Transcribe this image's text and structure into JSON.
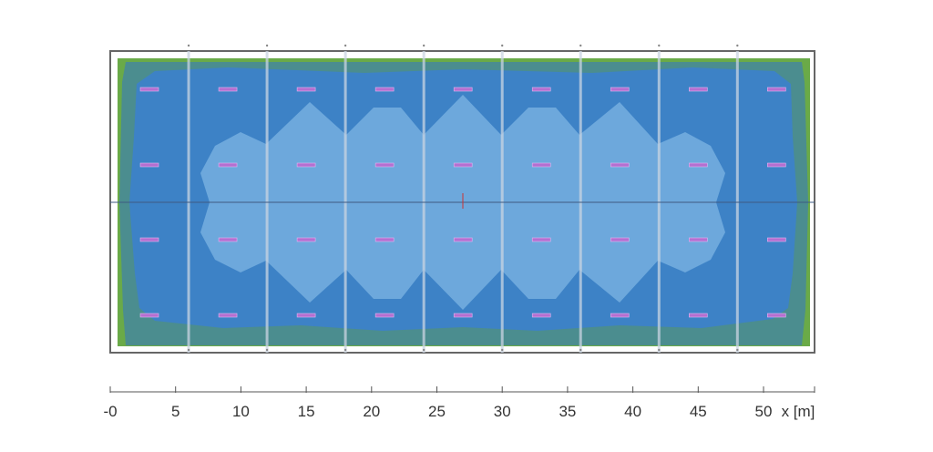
{
  "scale": {
    "ticks": [
      {
        "value": 0,
        "label": "-0"
      },
      {
        "value": 5,
        "label": "5"
      },
      {
        "value": 10,
        "label": "10"
      },
      {
        "value": 15,
        "label": "15"
      },
      {
        "value": 20,
        "label": "20"
      },
      {
        "value": 25,
        "label": "25"
      },
      {
        "value": 30,
        "label": "30"
      },
      {
        "value": 35,
        "label": "35"
      },
      {
        "value": 40,
        "label": "40"
      },
      {
        "value": 45,
        "label": "45"
      },
      {
        "value": 50,
        "label": "50"
      }
    ],
    "unit_label": "x [m]"
  },
  "plan": {
    "structural_lines_x_m": [
      6,
      12,
      18,
      24,
      30,
      36,
      42,
      48
    ],
    "luminaires": {
      "columns_x_m": [
        3,
        9,
        15,
        21,
        27,
        33,
        39,
        45,
        51
      ],
      "row_count": 4
    }
  },
  "colors": {
    "green_zone": "#6aaa48",
    "teal_zone": "#4b8d8f",
    "blue_zone": "#3d82c6",
    "light_blue_zone": "#6da8dc",
    "luminaire": "#b56fd0",
    "frame": "#555555"
  }
}
